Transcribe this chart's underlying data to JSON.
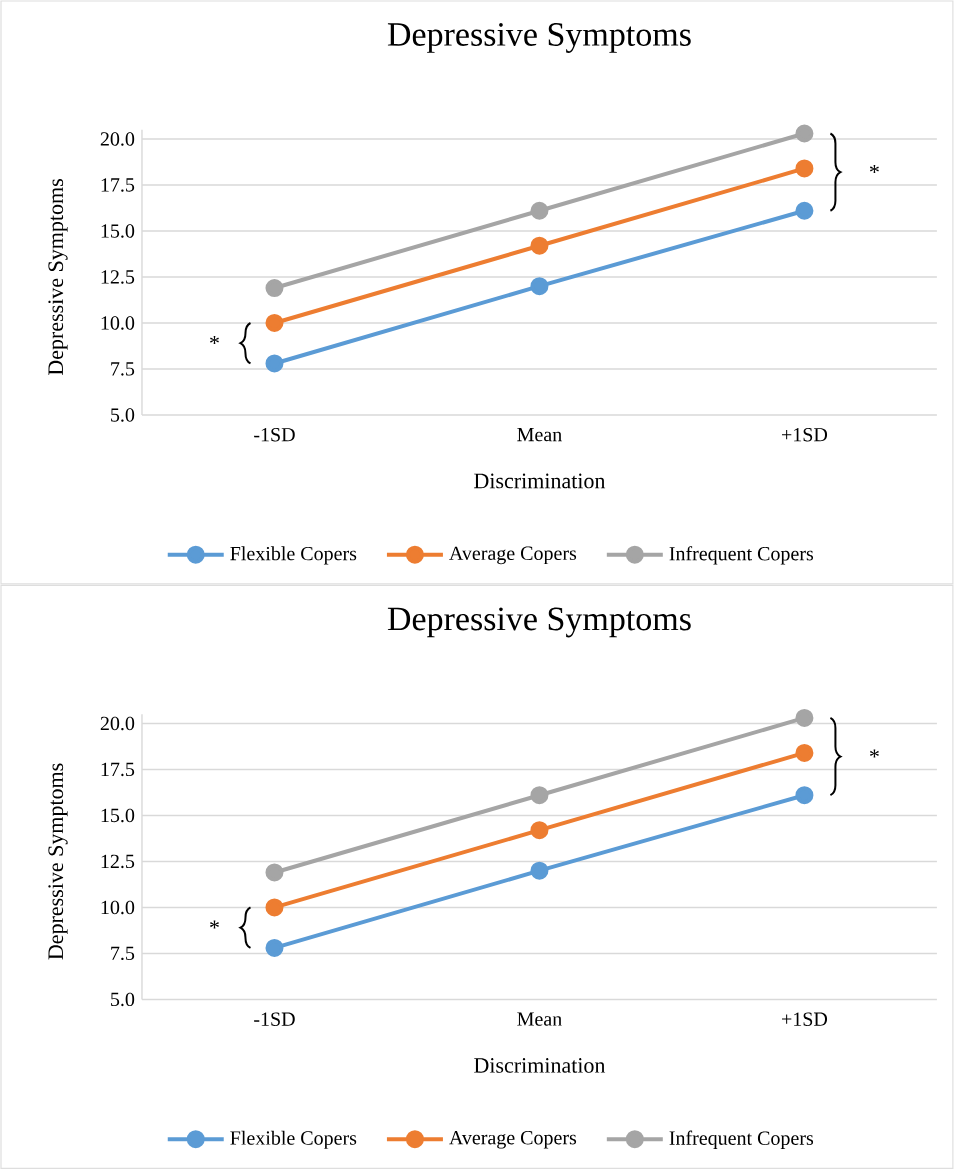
{
  "chart_data": [
    {
      "type": "line",
      "title": "Depressive Symptoms",
      "xlabel": "Discrimination",
      "ylabel": "Depressive Symptoms",
      "categories": [
        "-1SD",
        "Mean",
        "+1SD"
      ],
      "series": [
        {
          "name": "Flexible Copers",
          "color": "#5b9bd5",
          "values": [
            7.8,
            12.0,
            16.1
          ]
        },
        {
          "name": "Average Copers",
          "color": "#ed7d31",
          "values": [
            10.0,
            14.2,
            18.4
          ]
        },
        {
          "name": "Infrequent Copers",
          "color": "#a5a5a5",
          "values": [
            11.9,
            16.1,
            20.3
          ]
        }
      ],
      "ylim": [
        5,
        20.5
      ],
      "yticks": [
        {
          "value": 5,
          "label": "5.0"
        },
        {
          "value": 7.5,
          "label": "7.5"
        },
        {
          "value": 10,
          "label": "10.0"
        },
        {
          "value": 12.5,
          "label": "12.5"
        },
        {
          "value": 15,
          "label": "15.0"
        },
        {
          "value": 17.5,
          "label": "17.5"
        },
        {
          "value": 20,
          "label": "20.0"
        }
      ],
      "grid": "y",
      "legend": "bottom",
      "marker": "circle",
      "annotations": [
        "*",
        "*"
      ]
    },
    {
      "type": "line",
      "title": "Depressive Symptoms",
      "xlabel": "Discrimination",
      "ylabel": "Depressive Symptoms",
      "categories": [
        "-1SD",
        "Mean",
        "+1SD"
      ],
      "series": [
        {
          "name": "Flexible Copers",
          "color": "#5b9bd5",
          "values": [
            7.8,
            12.0,
            16.1
          ]
        },
        {
          "name": "Average Copers",
          "color": "#ed7d31",
          "values": [
            10.0,
            14.2,
            18.4
          ]
        },
        {
          "name": "Infrequent Copers",
          "color": "#a5a5a5",
          "values": [
            11.9,
            16.1,
            20.3
          ]
        }
      ],
      "ylim": [
        5,
        20.5
      ],
      "yticks": [
        {
          "value": 5,
          "label": "5.0"
        },
        {
          "value": 7.5,
          "label": "7.5"
        },
        {
          "value": 10,
          "label": "10.0"
        },
        {
          "value": 12.5,
          "label": "12.5"
        },
        {
          "value": 15,
          "label": "15.0"
        },
        {
          "value": 17.5,
          "label": "17.5"
        },
        {
          "value": 20,
          "label": "20.0"
        }
      ],
      "grid": "y",
      "legend": "bottom",
      "marker": "circle",
      "annotations": [
        "*",
        "*"
      ]
    }
  ]
}
